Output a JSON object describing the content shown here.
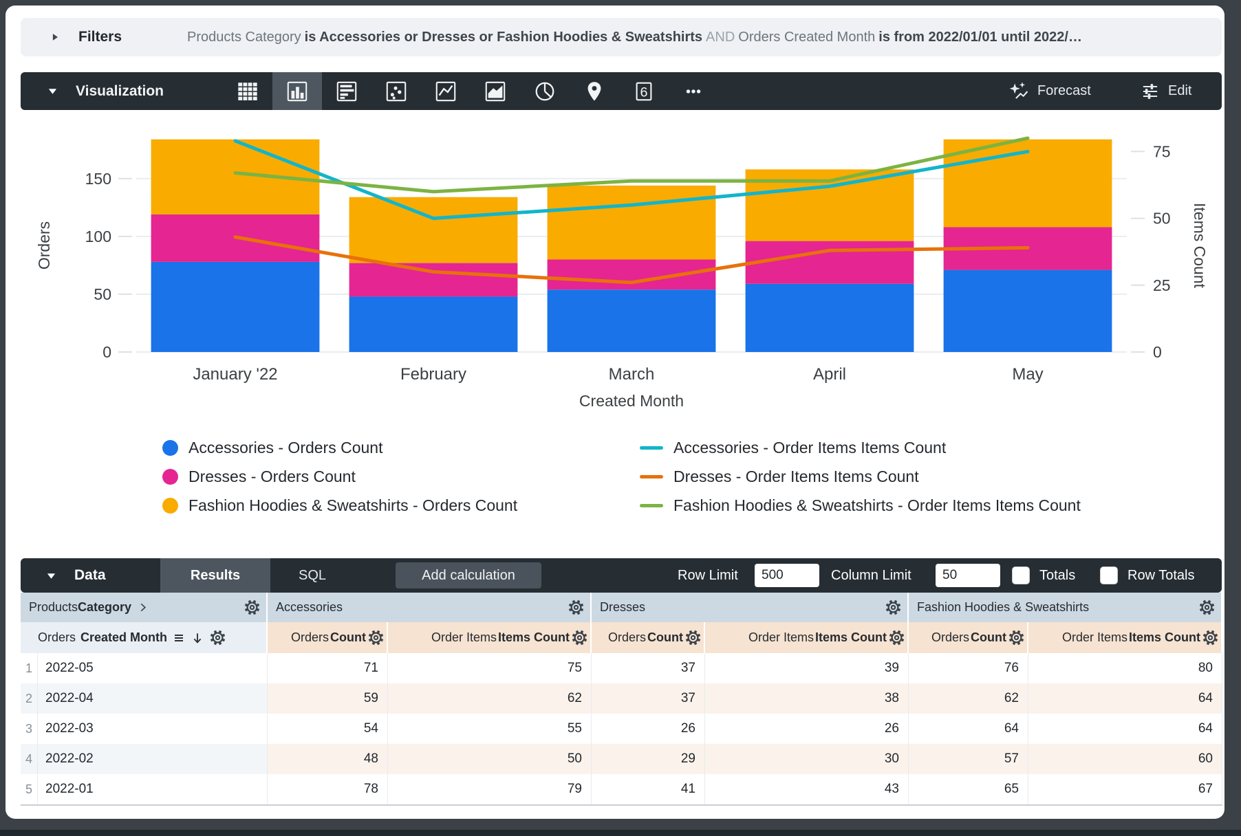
{
  "frame": {
    "background": "#3b4146",
    "window_background": "#ffffff"
  },
  "filters_bar": {
    "label": "Filters",
    "expression": [
      {
        "text": "Products Category",
        "style": "field"
      },
      {
        "text": "is Accessories or Dresses or Fashion Hoodies & Sweatshirts",
        "style": "condition"
      },
      {
        "text": "AND",
        "style": "operator"
      },
      {
        "text": "Orders Created Month",
        "style": "field"
      },
      {
        "text": "is from 2022/01/01 until 2022/…",
        "style": "condition"
      }
    ]
  },
  "viz_toolbar": {
    "label": "Visualization",
    "icons": [
      {
        "name": "table-chart",
        "selected": false
      },
      {
        "name": "column-chart",
        "selected": true
      },
      {
        "name": "bar-chart",
        "selected": false
      },
      {
        "name": "scatter-chart",
        "selected": false
      },
      {
        "name": "line-chart",
        "selected": false
      },
      {
        "name": "area-chart",
        "selected": false
      },
      {
        "name": "pie-chart",
        "selected": false
      },
      {
        "name": "map-chart",
        "selected": false
      },
      {
        "name": "single-value",
        "selected": false,
        "glyph_text": "6"
      },
      {
        "name": "more-options",
        "selected": false
      }
    ],
    "forecast_label": "Forecast",
    "edit_label": "Edit"
  },
  "chart_data": {
    "type": "combo-stacked-bar-line",
    "categories": [
      "January '22",
      "February",
      "March",
      "April",
      "May"
    ],
    "xlabel": "Created Month",
    "left_axis": {
      "label": "Orders",
      "ticks": [
        0,
        50,
        100,
        150
      ],
      "max": 185
    },
    "right_axis": {
      "label": "Items Count",
      "ticks": [
        0,
        25,
        50,
        75
      ],
      "max": 80
    },
    "bar_series": [
      {
        "name": "Accessories - Orders Count",
        "color": "#1A73E8",
        "values": [
          78,
          48,
          54,
          59,
          71
        ]
      },
      {
        "name": "Dresses - Orders Count",
        "color": "#E52592",
        "values": [
          41,
          29,
          26,
          37,
          37
        ]
      },
      {
        "name": "Fashion Hoodies & Sweatshirts - Orders Count",
        "color": "#F9AB00",
        "values": [
          65,
          57,
          64,
          62,
          76
        ]
      }
    ],
    "line_series": [
      {
        "name": "Accessories - Order Items Items Count",
        "color": "#12B5CB",
        "values": [
          79,
          50,
          55,
          62,
          75
        ]
      },
      {
        "name": "Dresses - Order Items Items Count",
        "color": "#E8710A",
        "values": [
          43,
          30,
          26,
          38,
          39
        ]
      },
      {
        "name": "Fashion Hoodies & Sweatshirts - Order Items Items Count",
        "color": "#7CB342",
        "values": [
          67,
          60,
          64,
          64,
          80
        ]
      }
    ],
    "legend_position": "bottom-two-columns",
    "grid": true
  },
  "data_bar": {
    "label": "Data",
    "tabs": [
      {
        "label": "Results",
        "active": true
      },
      {
        "label": "SQL",
        "active": false
      }
    ],
    "add_calculation_label": "Add calculation",
    "row_limit_label": "Row Limit",
    "row_limit_value": "500",
    "column_limit_label": "Column Limit",
    "column_limit_value": "50",
    "totals_label": "Totals",
    "totals_checked": false,
    "row_totals_label": "Row Totals",
    "row_totals_checked": false
  },
  "table": {
    "pivot_header": {
      "pre": "Products",
      "bold": "Category"
    },
    "dimension_header": {
      "pre": "Orders",
      "bold": "Created Month"
    },
    "groups": [
      "Accessories",
      "Dresses",
      "Fashion Hoodies & Sweatshirts"
    ],
    "measure_headers": [
      {
        "pre": "Orders",
        "bold": "Count"
      },
      {
        "pre": "Order Items",
        "bold": "Items Count"
      }
    ],
    "rows": [
      {
        "index": "1",
        "dimension": "2022-05",
        "values": [
          "71",
          "75",
          "37",
          "39",
          "76",
          "80"
        ]
      },
      {
        "index": "2",
        "dimension": "2022-04",
        "values": [
          "59",
          "62",
          "37",
          "38",
          "62",
          "64"
        ]
      },
      {
        "index": "3",
        "dimension": "2022-03",
        "values": [
          "54",
          "55",
          "26",
          "26",
          "64",
          "64"
        ]
      },
      {
        "index": "4",
        "dimension": "2022-02",
        "values": [
          "48",
          "50",
          "29",
          "30",
          "57",
          "60"
        ]
      },
      {
        "index": "5",
        "dimension": "2022-01",
        "values": [
          "78",
          "79",
          "41",
          "43",
          "65",
          "67"
        ]
      }
    ]
  }
}
